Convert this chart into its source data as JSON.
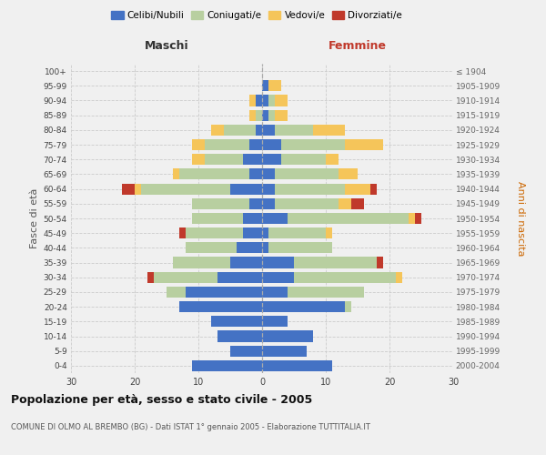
{
  "age_groups": [
    "0-4",
    "5-9",
    "10-14",
    "15-19",
    "20-24",
    "25-29",
    "30-34",
    "35-39",
    "40-44",
    "45-49",
    "50-54",
    "55-59",
    "60-64",
    "65-69",
    "70-74",
    "75-79",
    "80-84",
    "85-89",
    "90-94",
    "95-99",
    "100+"
  ],
  "birth_years": [
    "2000-2004",
    "1995-1999",
    "1990-1994",
    "1985-1989",
    "1980-1984",
    "1975-1979",
    "1970-1974",
    "1965-1969",
    "1960-1964",
    "1955-1959",
    "1950-1954",
    "1945-1949",
    "1940-1944",
    "1935-1939",
    "1930-1934",
    "1925-1929",
    "1920-1924",
    "1915-1919",
    "1910-1914",
    "1905-1909",
    "≤ 1904"
  ],
  "male": {
    "celibe": [
      11,
      5,
      7,
      8,
      13,
      12,
      7,
      5,
      4,
      3,
      3,
      2,
      5,
      2,
      3,
      2,
      1,
      0,
      1,
      0,
      0
    ],
    "coniugato": [
      0,
      0,
      0,
      0,
      0,
      3,
      10,
      9,
      8,
      9,
      8,
      9,
      14,
      11,
      6,
      7,
      5,
      1,
      0,
      0,
      0
    ],
    "vedovo": [
      0,
      0,
      0,
      0,
      0,
      0,
      0,
      0,
      0,
      0,
      0,
      0,
      1,
      1,
      2,
      2,
      2,
      1,
      1,
      0,
      0
    ],
    "divorziato": [
      0,
      0,
      0,
      0,
      0,
      0,
      1,
      0,
      0,
      1,
      0,
      0,
      2,
      0,
      0,
      0,
      0,
      0,
      0,
      0,
      0
    ]
  },
  "female": {
    "nubile": [
      11,
      7,
      8,
      4,
      13,
      4,
      5,
      5,
      1,
      1,
      4,
      2,
      2,
      2,
      3,
      3,
      2,
      1,
      1,
      1,
      0
    ],
    "coniugata": [
      0,
      0,
      0,
      0,
      1,
      12,
      16,
      13,
      10,
      9,
      19,
      10,
      11,
      10,
      7,
      10,
      6,
      1,
      1,
      0,
      0
    ],
    "vedova": [
      0,
      0,
      0,
      0,
      0,
      0,
      1,
      0,
      0,
      1,
      1,
      2,
      4,
      3,
      2,
      6,
      5,
      2,
      2,
      2,
      0
    ],
    "divorziata": [
      0,
      0,
      0,
      0,
      0,
      0,
      0,
      1,
      0,
      0,
      1,
      2,
      1,
      0,
      0,
      0,
      0,
      0,
      0,
      0,
      0
    ]
  },
  "colors": {
    "celibe": "#4472c4",
    "coniugato": "#b8cfa0",
    "vedovo": "#f5c55a",
    "divorziato": "#c0392b"
  },
  "title": "Popolazione per età, sesso e stato civile - 2005",
  "subtitle": "COMUNE DI OLMO AL BREMBO (BG) - Dati ISTAT 1° gennaio 2005 - Elaborazione TUTTITALIA.IT",
  "xlabel_left": "Maschi",
  "xlabel_right": "Femmine",
  "ylabel_left": "Fasce di età",
  "ylabel_right": "Anni di nascita",
  "xlim": 30,
  "background_color": "#f0f0f0",
  "grid_color": "#cccccc"
}
